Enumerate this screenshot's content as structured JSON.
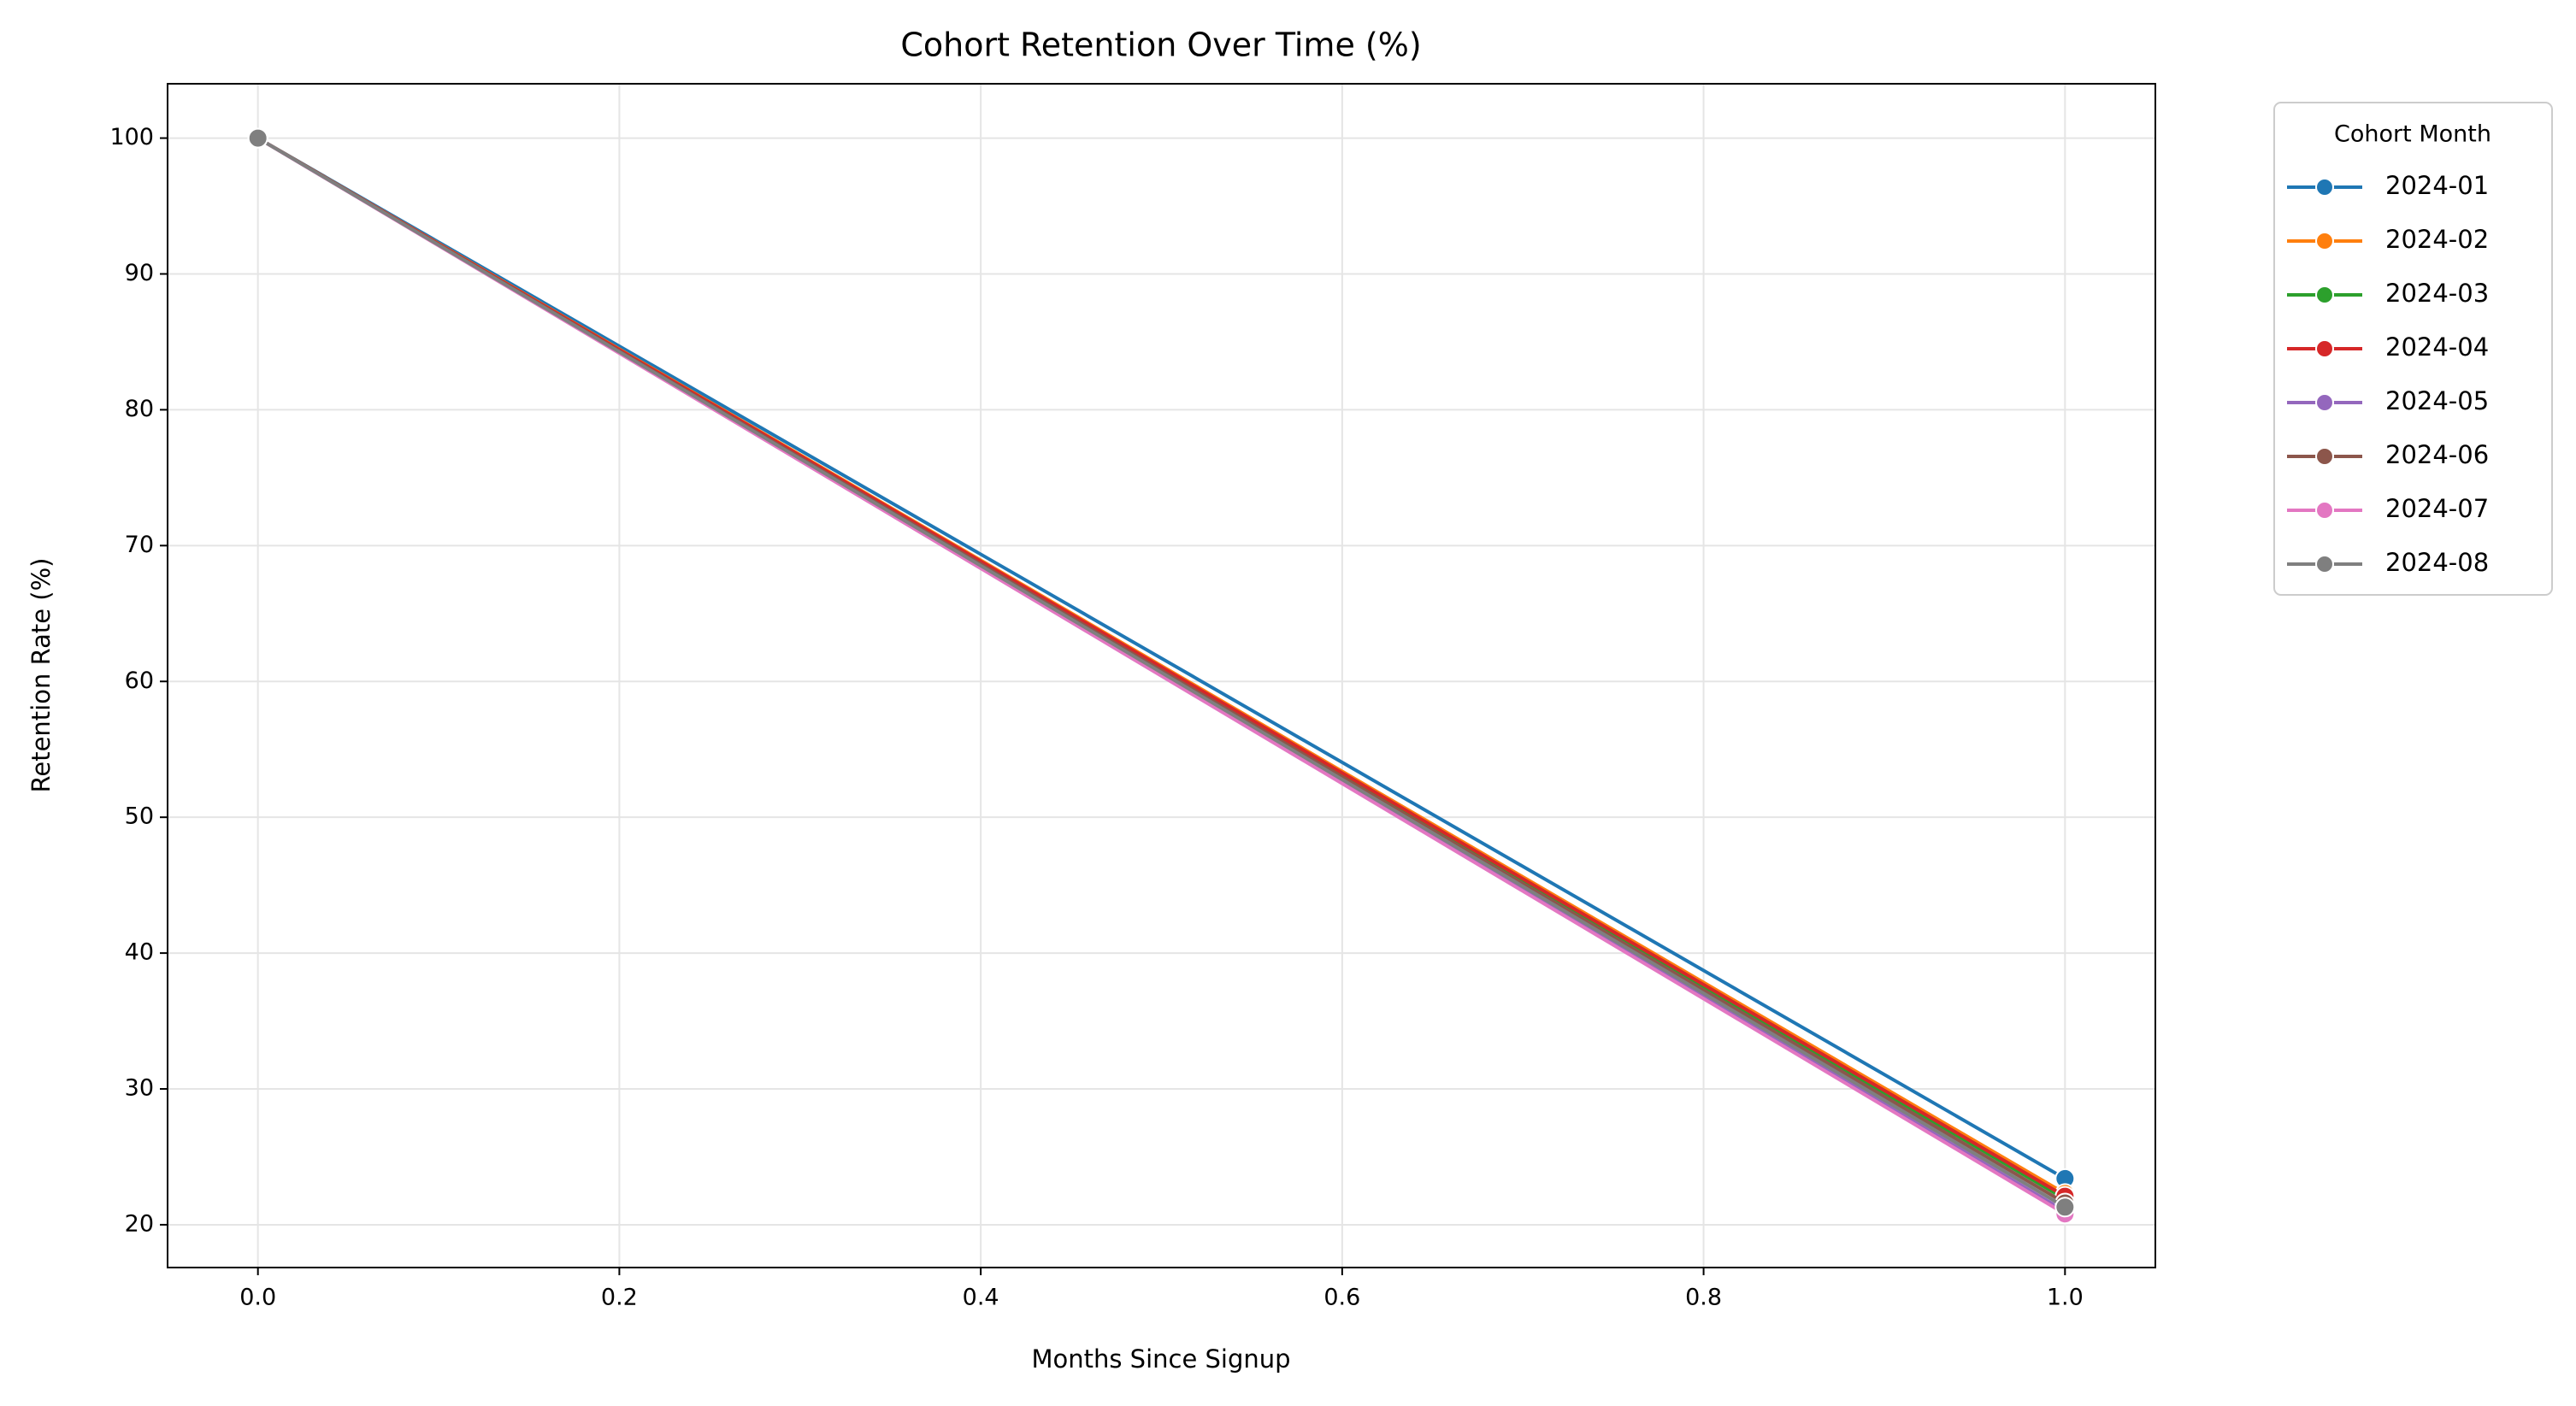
{
  "chart_data": {
    "type": "line",
    "title": "Cohort Retention Over Time (%)",
    "xlabel": "Months Since Signup",
    "ylabel": "Retention Rate (%)",
    "x": [
      0,
      1
    ],
    "xlim": [
      -0.05,
      1.05
    ],
    "xticks": [
      {
        "value": 0,
        "label": "0.0"
      },
      {
        "value": 0.2,
        "label": "0.2"
      },
      {
        "value": 0.4,
        "label": "0.4"
      },
      {
        "value": 0.6,
        "label": "0.6"
      },
      {
        "value": 0.8,
        "label": "0.8"
      },
      {
        "value": 1,
        "label": "1.0"
      }
    ],
    "ylim": [
      16.85,
      104
    ],
    "yticks": [
      20,
      30,
      40,
      50,
      60,
      70,
      80,
      90,
      100
    ],
    "grid": true,
    "legend_title": "Cohort Month",
    "legend_position": "outside-right",
    "series": [
      {
        "name": "2024-01",
        "color": "#1f77b4",
        "values": [
          100,
          23.4
        ]
      },
      {
        "name": "2024-02",
        "color": "#ff7f0e",
        "values": [
          100,
          22.3
        ]
      },
      {
        "name": "2024-03",
        "color": "#2ca02c",
        "values": [
          100,
          21.9
        ]
      },
      {
        "name": "2024-04",
        "color": "#d62728",
        "values": [
          100,
          22.1
        ]
      },
      {
        "name": "2024-05",
        "color": "#9467bd",
        "values": [
          100,
          21.0
        ]
      },
      {
        "name": "2024-06",
        "color": "#8c564b",
        "values": [
          100,
          21.6
        ]
      },
      {
        "name": "2024-07",
        "color": "#e377c2",
        "values": [
          100,
          20.8
        ]
      },
      {
        "name": "2024-08",
        "color": "#7f7f7f",
        "values": [
          100,
          21.3
        ]
      }
    ]
  }
}
